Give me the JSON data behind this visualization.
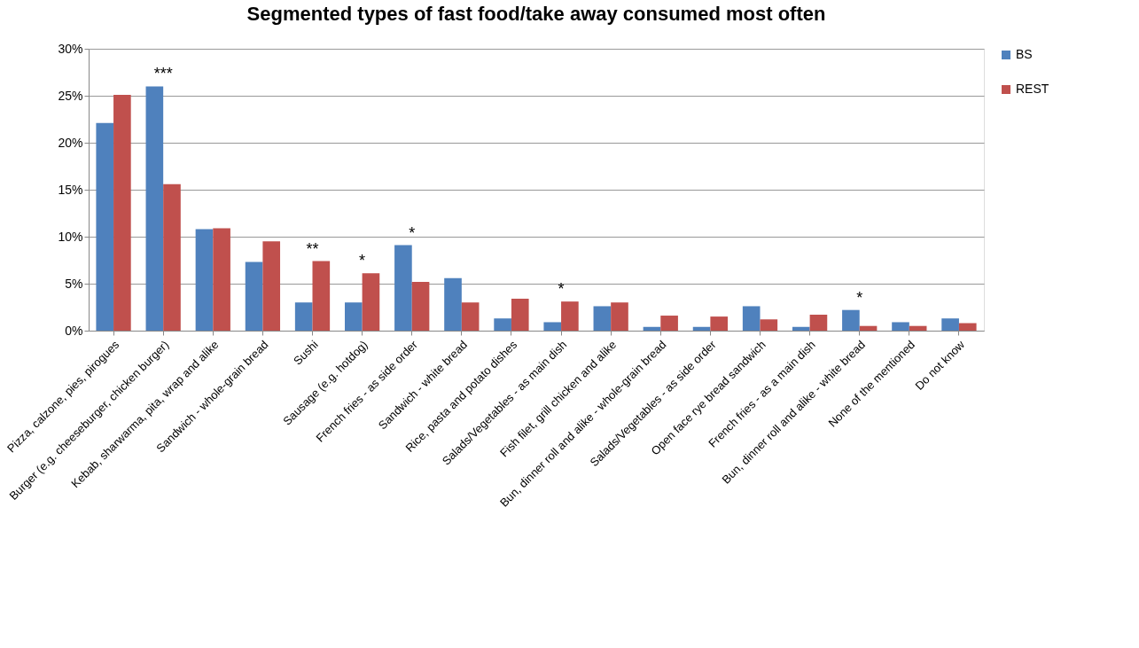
{
  "chart_data": {
    "type": "bar",
    "title": "Segmented types of fast food/take away consumed most often",
    "categories": [
      "Pizza, calzone, pies, pirogues",
      "Burger (e.g. cheeseburger, chicken burger)",
      "Kebab, sharwarma, pita, wrap and alike",
      "Sandwich - whole-grain bread",
      "Sushi",
      "Sausage (e.g. hotdog)",
      "French fries - as side order",
      "Sandwich - white bread",
      "Rice, pasta and potato dishes",
      "Salads/Vegetables - as main dish",
      "Fish filet, grill chicken and alike",
      "Bun, dinner roll and alike - whole-grain bread",
      "Salads/Vegetables - as side order",
      "Open face rye bread sandwich",
      "French fries - as a main dish",
      "Bun, dinner roll and alike - white bread",
      "None of the mentioned",
      "Do not know"
    ],
    "series": [
      {
        "name": "BS",
        "color": "#4f81bd",
        "values": [
          22.1,
          26.0,
          10.8,
          7.3,
          3.0,
          3.0,
          9.1,
          5.6,
          1.3,
          0.9,
          2.6,
          0.4,
          0.4,
          2.6,
          0.4,
          2.2,
          0.9,
          1.3
        ]
      },
      {
        "name": "REST",
        "color": "#c0504d",
        "values": [
          25.1,
          15.6,
          10.9,
          9.5,
          7.4,
          6.1,
          5.2,
          3.0,
          3.4,
          3.1,
          3.0,
          1.6,
          1.5,
          1.2,
          1.7,
          0.5,
          0.5,
          0.8
        ]
      }
    ],
    "ylim": [
      0,
      30
    ],
    "yticks": [
      {
        "value": 0,
        "label": "0%"
      },
      {
        "value": 5,
        "label": "5%"
      },
      {
        "value": 10,
        "label": "10%"
      },
      {
        "value": 15,
        "label": "15%"
      },
      {
        "value": 20,
        "label": "20%"
      },
      {
        "value": 25,
        "label": "25%"
      },
      {
        "value": 30,
        "label": "30%"
      }
    ],
    "annotations": [
      {
        "text": "***",
        "x": "Burger (e.g. cheeseburger, chicken burger)",
        "y": 26.0
      },
      {
        "text": "**",
        "x": "Sushi",
        "y": 7.4
      },
      {
        "text": "*",
        "x": "Sausage (e.g. hotdog)",
        "y": 6.1
      },
      {
        "text": "*",
        "x": "French fries - as side order",
        "y": 9.1
      },
      {
        "text": "*",
        "x": "Salads/Vegetables - as main dish",
        "y": 3.1
      },
      {
        "text": "*",
        "x": "Bun, dinner roll and alike - white bread",
        "y": 2.2
      }
    ],
    "grid": "y",
    "legend": "right"
  }
}
